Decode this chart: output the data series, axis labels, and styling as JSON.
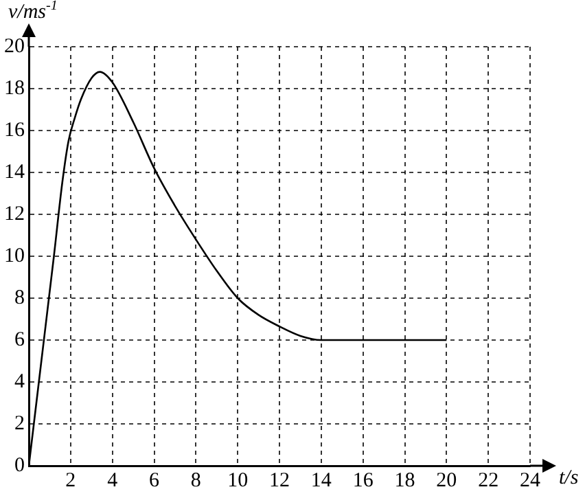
{
  "chart_data": {
    "type": "line",
    "xlabel": "t/s",
    "ylabel": "v/ms$^{-1}$",
    "x": [
      0,
      0.6,
      1.2,
      1.6,
      1.9,
      2.2,
      2.5,
      3,
      3.4,
      4,
      5,
      6,
      7,
      8,
      9,
      10,
      11,
      12,
      13,
      14,
      16,
      18,
      20
    ],
    "values": [
      0,
      5,
      10,
      13.5,
      15.5,
      16.6,
      17.5,
      18.5,
      18.8,
      18.3,
      16.4,
      14.2,
      12.4,
      10.8,
      9.3,
      8,
      7.2,
      6.65,
      6.2,
      6,
      6,
      6,
      6
    ],
    "color": "#000000",
    "xlim": [
      0,
      24
    ],
    "ylim": [
      0,
      20
    ],
    "xticks": [
      2,
      4,
      6,
      8,
      10,
      12,
      14,
      16,
      18,
      20,
      22,
      24
    ],
    "yticks": [
      0,
      2,
      4,
      6,
      8,
      10,
      12,
      14,
      16,
      18,
      20
    ],
    "grid": true,
    "legend": false,
    "marker": "none",
    "line_style": "solid"
  }
}
